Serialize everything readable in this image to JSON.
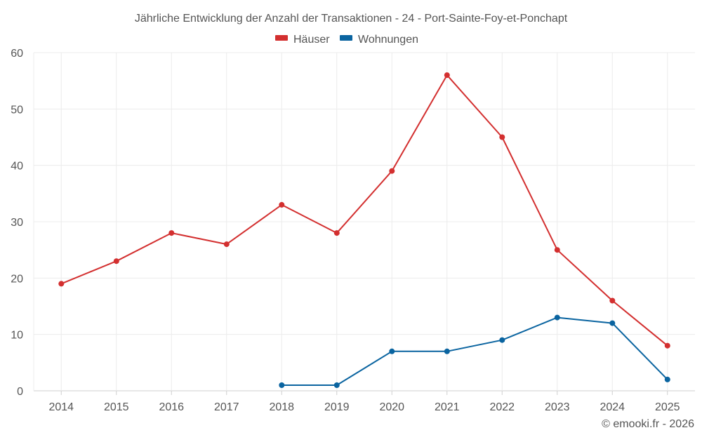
{
  "chart_data": {
    "type": "line",
    "title": "Jährliche Entwicklung der Anzahl der Transaktionen - 24 - Port-Sainte-Foy-et-Ponchapt",
    "x": [
      "2014",
      "2015",
      "2016",
      "2017",
      "2018",
      "2019",
      "2020",
      "2021",
      "2022",
      "2023",
      "2024",
      "2025"
    ],
    "series": [
      {
        "name": "Häuser",
        "color": "#d32f2f",
        "values": [
          19,
          23,
          28,
          26,
          33,
          28,
          39,
          56,
          45,
          25,
          16,
          8
        ]
      },
      {
        "name": "Wohnungen",
        "color": "#0a64a0",
        "values": [
          null,
          null,
          null,
          null,
          1,
          1,
          7,
          7,
          9,
          13,
          12,
          2
        ]
      }
    ],
    "xlabel": "",
    "ylabel": "",
    "ylim": [
      0,
      60
    ],
    "yticks": [
      0,
      10,
      20,
      30,
      40,
      50,
      60
    ],
    "grid": true,
    "legend_position": "top-center"
  },
  "credit": "© emooki.fr - 2026"
}
